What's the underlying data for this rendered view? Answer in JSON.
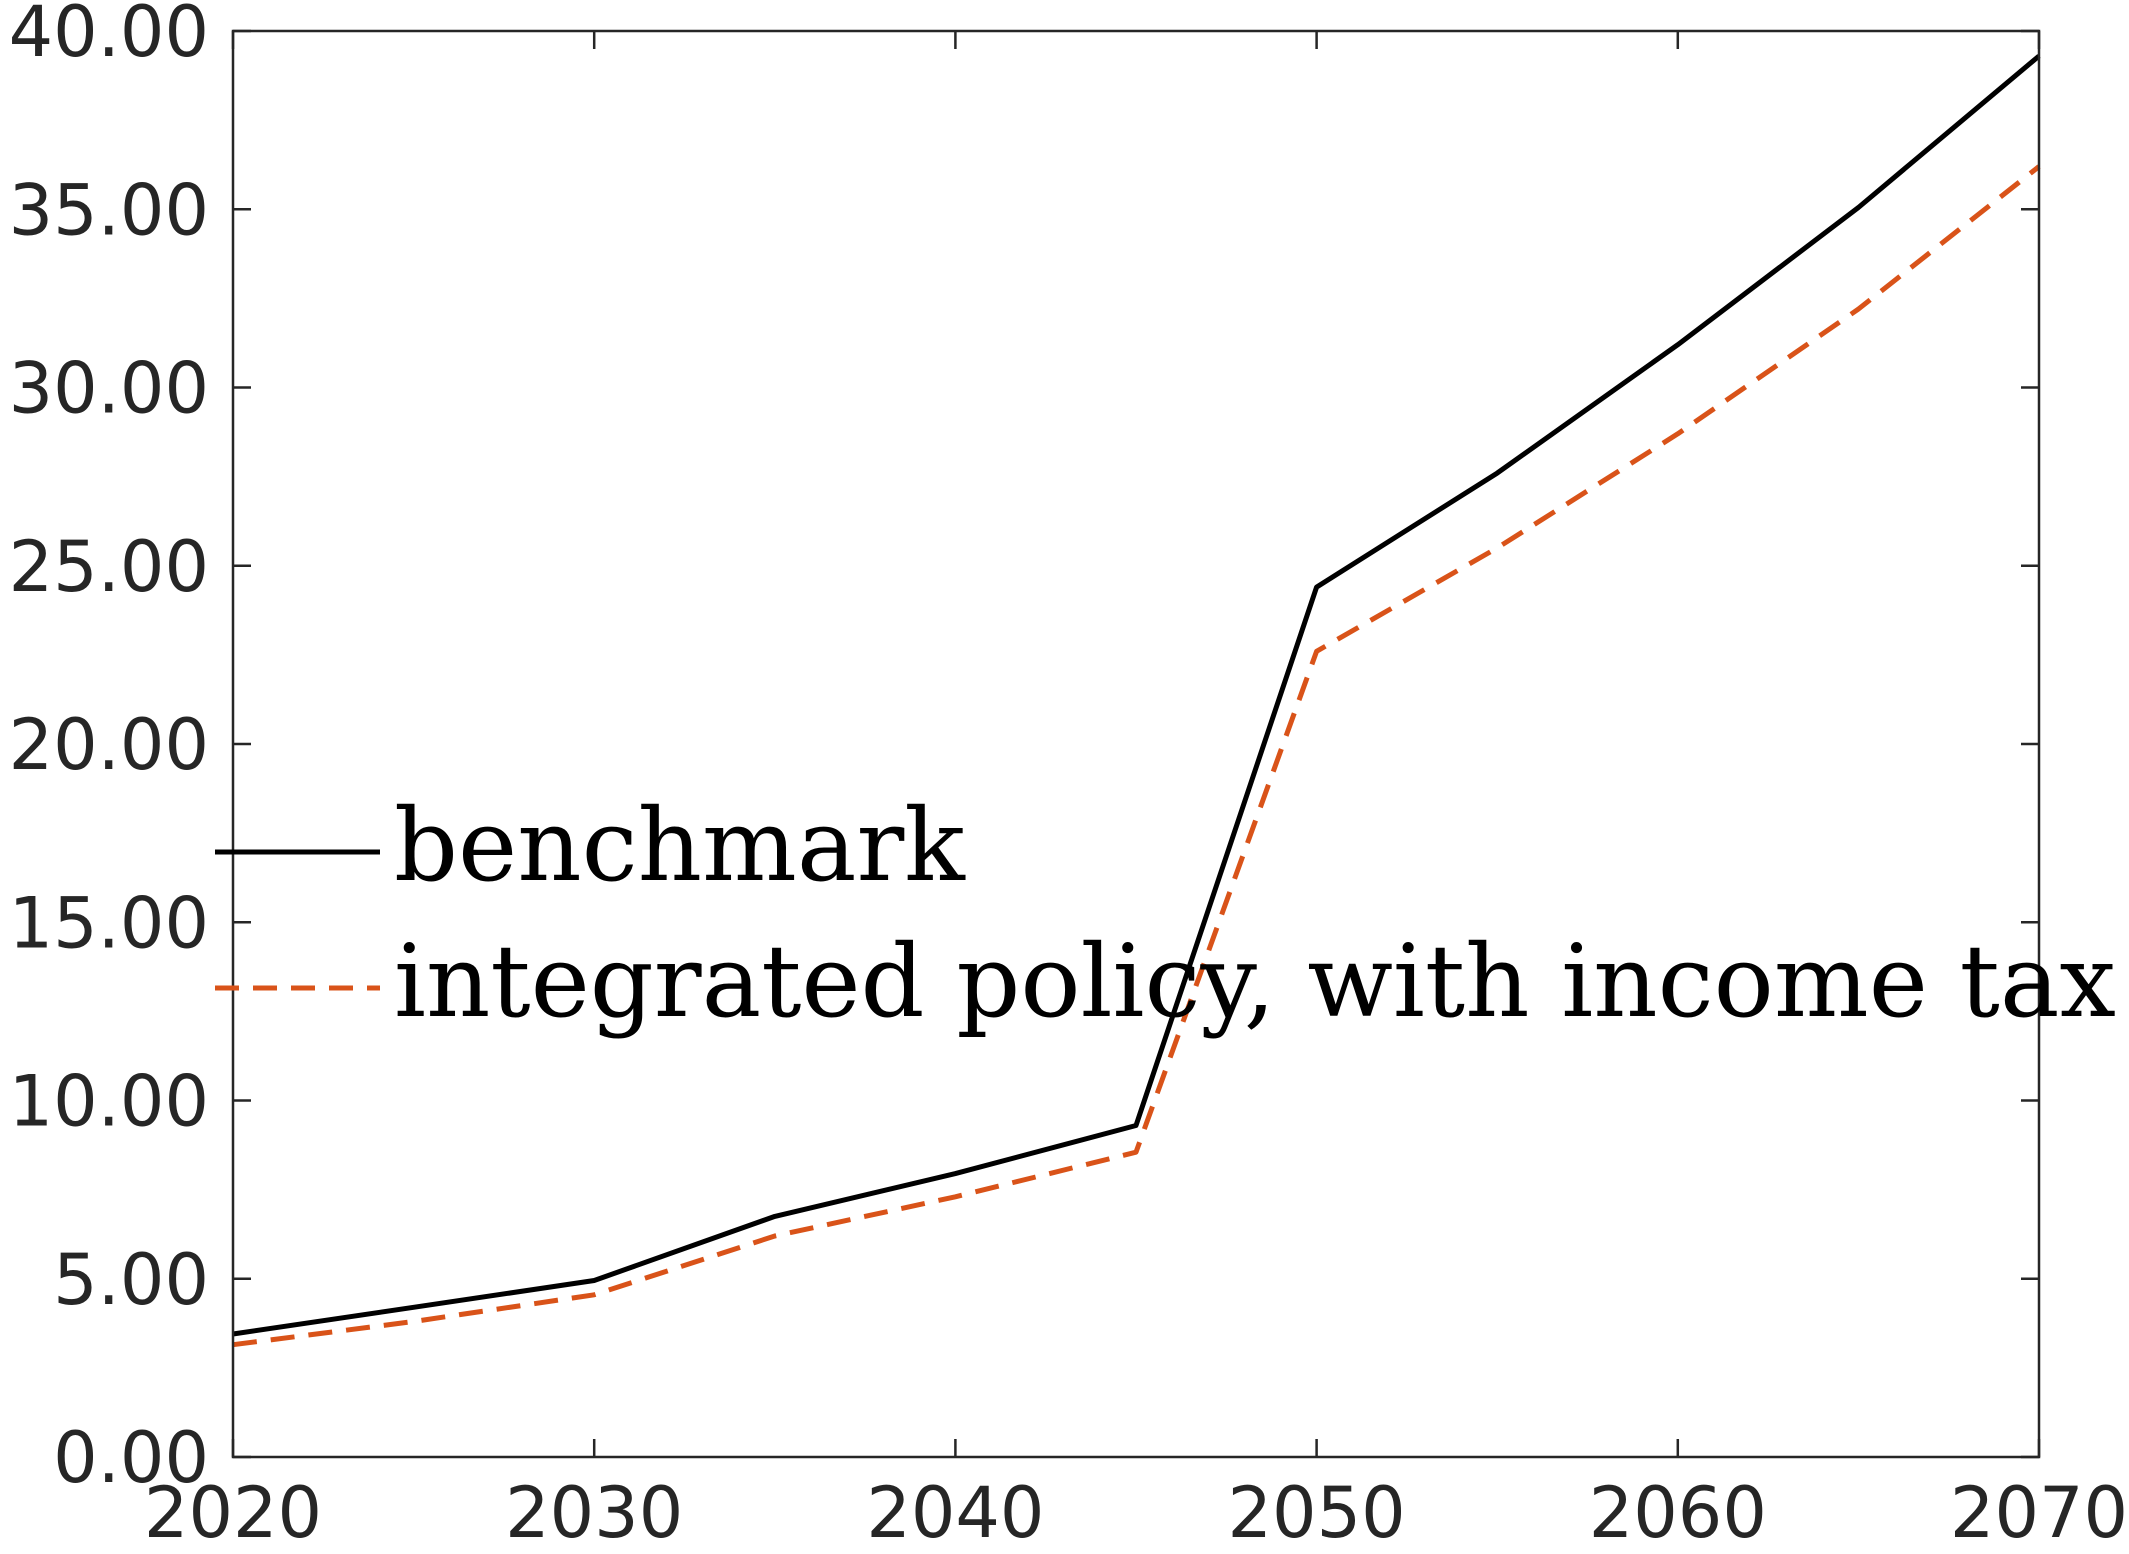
{
  "chart_data": {
    "type": "line",
    "title": "",
    "xlabel": "",
    "ylabel": "",
    "xlim": [
      2020,
      2070
    ],
    "ylim": [
      0,
      40
    ],
    "x_ticks": [
      2020,
      2030,
      2040,
      2050,
      2060,
      2070
    ],
    "x_tick_labels": [
      "2020",
      "2030",
      "2040",
      "2050",
      "2060",
      "2070"
    ],
    "y_ticks": [
      0,
      5,
      10,
      15,
      20,
      25,
      30,
      35,
      40
    ],
    "y_tick_labels": [
      "0.00",
      "5.00",
      "10.00",
      "15.00",
      "20.00",
      "25.00",
      "30.00",
      "35.00",
      "40.00"
    ],
    "grid": false,
    "legend": {
      "position": "center-left"
    },
    "series": [
      {
        "name": "benchmark",
        "color": "#000000",
        "style": "solid",
        "x": [
          2020,
          2025,
          2030,
          2035,
          2040,
          2045,
          2050,
          2055,
          2060,
          2065,
          2070
        ],
        "y": [
          3.45,
          4.2,
          4.95,
          6.75,
          7.95,
          9.3,
          24.4,
          27.6,
          31.2,
          35.05,
          39.3
        ]
      },
      {
        "name": "integrated policy, with income tax",
        "color": "#D95319",
        "style": "dashed",
        "x": [
          2020,
          2025,
          2030,
          2035,
          2040,
          2045,
          2050,
          2055,
          2060,
          2065,
          2070
        ],
        "y": [
          3.15,
          3.8,
          4.55,
          6.2,
          7.3,
          8.55,
          22.6,
          25.5,
          28.7,
          32.2,
          36.2
        ]
      }
    ]
  }
}
